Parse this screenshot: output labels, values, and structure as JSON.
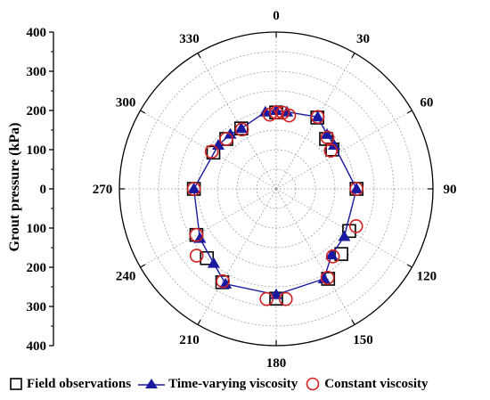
{
  "chart_data": {
    "type": "polar-line",
    "ylabel": "Grout pressure (kPa)",
    "radial_ticks": [
      "400",
      "300",
      "200",
      "100",
      "0",
      "100",
      "200",
      "300",
      "400"
    ],
    "angle_ticks": [
      "0",
      "30",
      "60",
      "90",
      "120",
      "150",
      "180",
      "210",
      "240",
      "270",
      "300",
      "330"
    ],
    "radial_range": [
      0,
      400
    ],
    "grid": true,
    "legend_position": "bottom",
    "colors": {
      "field": "#000000",
      "time": "#1a1aa0",
      "constant": "#d42020",
      "grid": "#9a9a9a",
      "axis": "#000000"
    },
    "series": [
      {
        "name": "Field observations",
        "marker": "square",
        "points": [
          [
            0,
            195
          ],
          [
            30,
            210
          ],
          [
            45,
            180
          ],
          [
            55,
            175
          ],
          [
            90,
            205
          ],
          [
            120,
            215
          ],
          [
            135,
            235
          ],
          [
            150,
            265
          ],
          [
            180,
            280
          ],
          [
            210,
            275
          ],
          [
            225,
            250
          ],
          [
            240,
            235
          ],
          [
            270,
            210
          ],
          [
            300,
            185
          ],
          [
            315,
            180
          ],
          [
            330,
            178
          ]
        ]
      },
      {
        "name": "Time-varying viscosity",
        "marker": "triangle",
        "points": [
          [
            0,
            200
          ],
          [
            8,
            198
          ],
          [
            30,
            212
          ],
          [
            43,
            190
          ],
          [
            53,
            185
          ],
          [
            90,
            205
          ],
          [
            125,
            212
          ],
          [
            140,
            220
          ],
          [
            152,
            260
          ],
          [
            180,
            270
          ],
          [
            208,
            275
          ],
          [
            220,
            248
          ],
          [
            237,
            232
          ],
          [
            270,
            210
          ],
          [
            307,
            185
          ],
          [
            320,
            182
          ],
          [
            330,
            178
          ],
          [
            352,
            198
          ]
        ]
      },
      {
        "name": "Constant viscosity",
        "marker": "circle",
        "points": [
          [
            0,
            195
          ],
          [
            5,
            195
          ],
          [
            10,
            190
          ],
          [
            30,
            212
          ],
          [
            45,
            185
          ],
          [
            55,
            170
          ],
          [
            90,
            205
          ],
          [
            115,
            225
          ],
          [
            140,
            225
          ],
          [
            150,
            262
          ],
          [
            175,
            282
          ],
          [
            185,
            282
          ],
          [
            210,
            272
          ],
          [
            230,
            265
          ],
          [
            240,
            235
          ],
          [
            270,
            210
          ],
          [
            300,
            190
          ],
          [
            315,
            180
          ],
          [
            330,
            175
          ],
          [
            355,
            190
          ]
        ]
      }
    ]
  }
}
